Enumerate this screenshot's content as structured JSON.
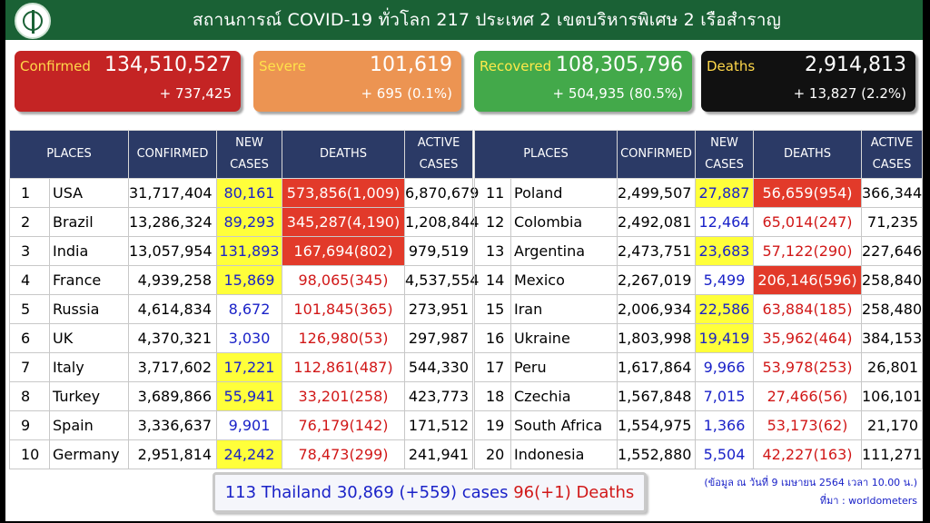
{
  "header": {
    "title": "สถานการณ์ COVID-19 ทั่วโลก 217 ประเทศ 2 เขตบริหารพิเศษ 2 เรือสำราญ",
    "logo_icon": "ministry-of-public-health-logo"
  },
  "stats": {
    "confirmed": {
      "label": "Confirmed",
      "value": "134,510,527",
      "sub": "+ 737,425"
    },
    "severe": {
      "label": "Severe",
      "value": "101,619",
      "sub": "+ 695 (0.1%)"
    },
    "recovered": {
      "label": "Recovered",
      "value": "108,305,796",
      "sub": "+ 504,935 (80.5%)"
    },
    "deaths": {
      "label": "Deaths",
      "value": "2,914,813",
      "sub": "+ 13,827 (2.2%)"
    }
  },
  "columns": {
    "places": "PLACES",
    "confirmed": "CONFIRMED",
    "new_cases_1": "NEW",
    "new_cases_2": "CASES",
    "deaths": "DEATHS",
    "active_1": "ACTIVE",
    "active_2": "CASES"
  },
  "colors": {
    "header_green": "#1a6135",
    "table_header_navy": "#2b3a66",
    "highlight_yellow": "#ffff3a",
    "highlight_red": "#e23a2a",
    "text_blue": "#1a22c8",
    "text_red": "#d11818"
  },
  "rows": [
    {
      "rank": "1",
      "place": "USA",
      "confirmed": "31,717,404",
      "new_cases": "80,161",
      "new_hl": true,
      "deaths": "573,856(1,009)",
      "deaths_hl": true,
      "active": "6,870,679"
    },
    {
      "rank": "2",
      "place": "Brazil",
      "confirmed": "13,286,324",
      "new_cases": "89,293",
      "new_hl": true,
      "deaths": "345,287(4,190)",
      "deaths_hl": true,
      "active": "1,208,844"
    },
    {
      "rank": "3",
      "place": "India",
      "confirmed": "13,057,954",
      "new_cases": "131,893",
      "new_hl": true,
      "deaths": "167,694(802)",
      "deaths_hl": true,
      "active": "979,519"
    },
    {
      "rank": "4",
      "place": "France",
      "confirmed": "4,939,258",
      "new_cases": "15,869",
      "new_hl": true,
      "deaths": "98,065(345)",
      "deaths_hl": false,
      "active": "4,537,554"
    },
    {
      "rank": "5",
      "place": "Russia",
      "confirmed": "4,614,834",
      "new_cases": "8,672",
      "new_hl": false,
      "deaths": "101,845(365)",
      "deaths_hl": false,
      "active": "273,951"
    },
    {
      "rank": "6",
      "place": "UK",
      "confirmed": "4,370,321",
      "new_cases": "3,030",
      "new_hl": false,
      "deaths": "126,980(53)",
      "deaths_hl": false,
      "active": "297,987"
    },
    {
      "rank": "7",
      "place": "Italy",
      "confirmed": "3,717,602",
      "new_cases": "17,221",
      "new_hl": true,
      "deaths": "112,861(487)",
      "deaths_hl": false,
      "active": "544,330"
    },
    {
      "rank": "8",
      "place": "Turkey",
      "confirmed": "3,689,866",
      "new_cases": "55,941",
      "new_hl": true,
      "deaths": "33,201(258)",
      "deaths_hl": false,
      "active": "423,773"
    },
    {
      "rank": "9",
      "place": "Spain",
      "confirmed": "3,336,637",
      "new_cases": "9,901",
      "new_hl": false,
      "deaths": "76,179(142)",
      "deaths_hl": false,
      "active": "171,512"
    },
    {
      "rank": "10",
      "place": "Germany",
      "confirmed": "2,951,814",
      "new_cases": "24,242",
      "new_hl": true,
      "deaths": "78,473(299)",
      "deaths_hl": false,
      "active": "241,941"
    },
    {
      "rank": "11",
      "place": "Poland",
      "confirmed": "2,499,507",
      "new_cases": "27,887",
      "new_hl": true,
      "deaths": "56,659(954)",
      "deaths_hl": true,
      "active": "366,344"
    },
    {
      "rank": "12",
      "place": "Colombia",
      "confirmed": "2,492,081",
      "new_cases": "12,464",
      "new_hl": false,
      "deaths": "65,014(247)",
      "deaths_hl": false,
      "active": "71,235"
    },
    {
      "rank": "13",
      "place": "Argentina",
      "confirmed": "2,473,751",
      "new_cases": "23,683",
      "new_hl": true,
      "deaths": "57,122(290)",
      "deaths_hl": false,
      "active": "227,646"
    },
    {
      "rank": "14",
      "place": "Mexico",
      "confirmed": "2,267,019",
      "new_cases": "5,499",
      "new_hl": false,
      "deaths": "206,146(596)",
      "deaths_hl": true,
      "active": "258,840"
    },
    {
      "rank": "15",
      "place": "Iran",
      "confirmed": "2,006,934",
      "new_cases": "22,586",
      "new_hl": true,
      "deaths": "63,884(185)",
      "deaths_hl": false,
      "active": "258,480"
    },
    {
      "rank": "16",
      "place": "Ukraine",
      "confirmed": "1,803,998",
      "new_cases": "19,419",
      "new_hl": true,
      "deaths": "35,962(464)",
      "deaths_hl": false,
      "active": "384,153"
    },
    {
      "rank": "17",
      "place": "Peru",
      "confirmed": "1,617,864",
      "new_cases": "9,966",
      "new_hl": false,
      "deaths": "53,978(253)",
      "deaths_hl": false,
      "active": "26,801"
    },
    {
      "rank": "18",
      "place": "Czechia",
      "confirmed": "1,567,848",
      "new_cases": "7,015",
      "new_hl": false,
      "deaths": "27,466(56)",
      "deaths_hl": false,
      "active": "106,101"
    },
    {
      "rank": "19",
      "place": "South Africa",
      "confirmed": "1,554,975",
      "new_cases": "1,366",
      "new_hl": false,
      "deaths": "53,173(62)",
      "deaths_hl": false,
      "active": "21,170"
    },
    {
      "rank": "20",
      "place": "Indonesia",
      "confirmed": "1,552,880",
      "new_cases": "5,504",
      "new_hl": false,
      "deaths": "42,227(163)",
      "deaths_hl": false,
      "active": "111,271"
    }
  ],
  "thailand": {
    "prefix": "113 Thailand 30,869 (+559) cases",
    "deaths": "96(+1) Deaths"
  },
  "footnote": {
    "date": "(ข้อมูล ณ วันที่ 9 เมษายน 2564 เวลา 10.00 น.)",
    "source": "ที่มา : worldometers"
  }
}
